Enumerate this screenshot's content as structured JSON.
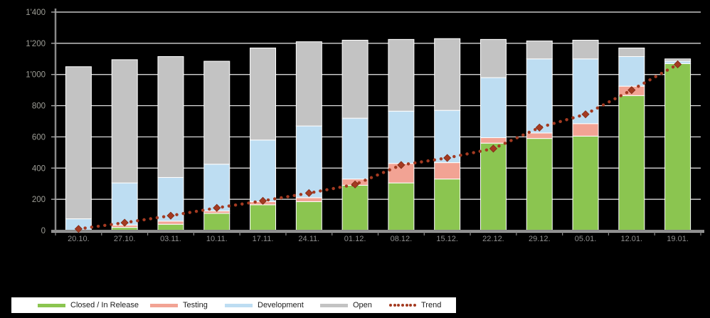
{
  "chart_data": {
    "type": "bar",
    "stacked": true,
    "title": "",
    "xlabel": "",
    "ylabel": "",
    "categories": [
      "20.10.",
      "27.10.",
      "03.11.",
      "10.11.",
      "17.11.",
      "24.11.",
      "01.12.",
      "08.12.",
      "15.12.",
      "22.12.",
      "29.12.",
      "05.01.",
      "12.01.",
      "19.01."
    ],
    "series": [
      {
        "name": "Closed / In Release",
        "color": "#8BC550",
        "values": [
          0,
          20,
          40,
          110,
          165,
          185,
          290,
          305,
          330,
          560,
          590,
          605,
          865,
          1070
        ]
      },
      {
        "name": "Testing",
        "color": "#F2A394",
        "values": [
          0,
          15,
          20,
          15,
          20,
          25,
          40,
          125,
          105,
          35,
          35,
          80,
          60,
          0
        ]
      },
      {
        "name": "Development",
        "color": "#BDDDF2",
        "values": [
          75,
          270,
          280,
          300,
          395,
          460,
          390,
          335,
          335,
          385,
          475,
          415,
          190,
          15
        ]
      },
      {
        "name": "Open",
        "color": "#C3C3C3",
        "values": [
          975,
          790,
          775,
          660,
          590,
          540,
          500,
          460,
          460,
          245,
          115,
          120,
          55,
          15
        ]
      }
    ],
    "trend_series": {
      "name": "Trend",
      "color": "#A43A21",
      "values": [
        10,
        50,
        95,
        145,
        190,
        240,
        295,
        420,
        465,
        525,
        660,
        745,
        900,
        1065
      ]
    },
    "ylim": [
      0,
      1400
    ],
    "ytick_step": 200,
    "ytick_labels": [
      "0",
      "200",
      "400",
      "600",
      "800",
      "1'000",
      "1'200",
      "1'400"
    ],
    "grid": "horizontal white gridlines on dark background",
    "legend_position": "bottom-left",
    "background_color": "#000000",
    "gridline_color": "#FFFFFF",
    "axis_color": "#8A8A8A",
    "y_tick_label_color": "#9D9D96",
    "x_tick_label_color": "#8F8F8F",
    "bar_border_color": "#FFFFFF"
  },
  "legend": {
    "items": [
      {
        "label": "Closed / In Release",
        "color": "#8BC550",
        "swatch": "box"
      },
      {
        "label": "Testing",
        "color": "#F2A394",
        "swatch": "box"
      },
      {
        "label": "Development",
        "color": "#BDDDF2",
        "swatch": "box"
      },
      {
        "label": "Open",
        "color": "#C3C3C3",
        "swatch": "box"
      },
      {
        "label": "Trend",
        "color": "#A43A21",
        "swatch": "dotted-line"
      }
    ]
  }
}
